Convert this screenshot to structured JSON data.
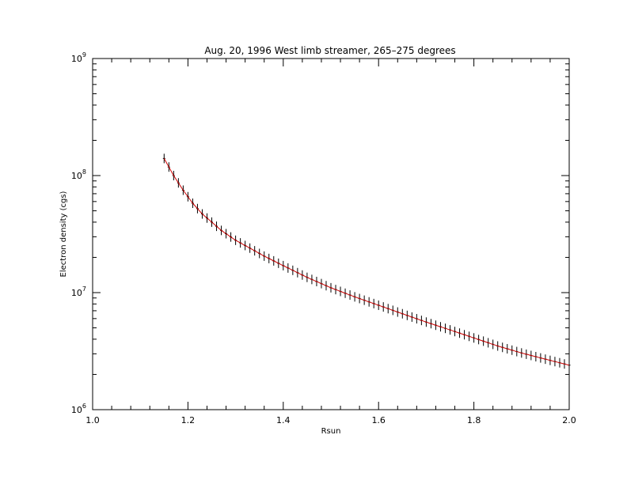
{
  "chart_data": {
    "type": "line",
    "title": "Aug. 20, 1996 West limb streamer, 265–275 degrees",
    "xlabel": "Rsun",
    "ylabel": "Electron density (cgs)",
    "xlim": [
      1.0,
      2.0
    ],
    "ylim": [
      1000000,
      1000000000
    ],
    "y_scale": "log",
    "grid": false,
    "x_ticks": [
      {
        "value": 1.0,
        "label": "1.0"
      },
      {
        "value": 1.2,
        "label": "1.2"
      },
      {
        "value": 1.4,
        "label": "1.4"
      },
      {
        "value": 1.6,
        "label": "1.6"
      },
      {
        "value": 1.8,
        "label": "1.8"
      },
      {
        "value": 2.0,
        "label": "2.0"
      }
    ],
    "y_ticks": [
      {
        "value": 1000000,
        "base": "10",
        "exp": "6"
      },
      {
        "value": 10000000,
        "base": "10",
        "exp": "7"
      },
      {
        "value": 100000000,
        "base": "10",
        "exp": "8"
      },
      {
        "value": 1000000000,
        "base": "10",
        "exp": "9"
      }
    ],
    "colors": {
      "data": "#000000",
      "fit": "#cc0000",
      "axes": "#000000"
    },
    "series": [
      {
        "marker": "plus",
        "x": [
          1.15,
          1.17,
          1.19,
          1.21,
          1.23,
          1.25,
          1.27,
          1.3,
          1.33,
          1.36,
          1.4,
          1.45,
          1.5,
          1.55,
          1.6,
          1.65,
          1.7,
          1.75,
          1.8,
          1.85,
          1.9,
          1.95,
          2.0
        ],
        "y": [
          140000000,
          100000000,
          75000000,
          58000000,
          47000000,
          40000000,
          34000000,
          28000000,
          24000000,
          20500000,
          17000000,
          13500000,
          11000000,
          9200000,
          7800000,
          6600000,
          5600000,
          4800000,
          4100000,
          3500000,
          3050000,
          2700000,
          2400000
        ]
      },
      {
        "marker": "none",
        "x": [
          1.15,
          1.17,
          1.19,
          1.21,
          1.23,
          1.25,
          1.27,
          1.3,
          1.33,
          1.36,
          1.4,
          1.45,
          1.5,
          1.55,
          1.6,
          1.65,
          1.7,
          1.75,
          1.8,
          1.85,
          1.9,
          1.95,
          2.0
        ],
        "y": [
          140000000,
          100000000,
          75000000,
          58000000,
          47000000,
          40000000,
          34000000,
          28000000,
          24000000,
          20500000,
          17000000,
          13500000,
          11000000,
          9200000,
          7800000,
          6600000,
          5600000,
          4800000,
          4100000,
          3500000,
          3050000,
          2700000,
          2400000
        ]
      }
    ]
  }
}
